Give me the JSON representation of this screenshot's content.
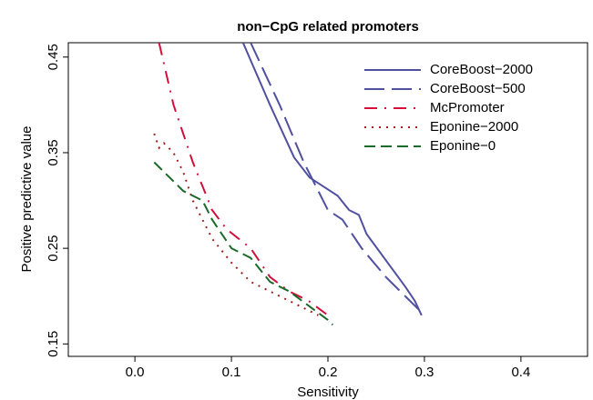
{
  "chart_data": {
    "type": "line",
    "title": "non−CpG related promoters",
    "xlabel": "Sensitivity",
    "ylabel": "Positive predictive value",
    "xlim": [
      -0.069,
      0.469
    ],
    "ylim": [
      0.137,
      0.465
    ],
    "xticks": [
      {
        "value": 0,
        "label": "0.0"
      },
      0.1,
      0.2,
      0.3,
      0.4
    ],
    "yticks": [
      0.15,
      0.25,
      0.35,
      0.45
    ],
    "legend": "top-right",
    "series": [
      {
        "name": "CoreBoost−2000",
        "color": "#5050a0",
        "style": "solid",
        "x": [
          0.112,
          0.14,
          0.165,
          0.181,
          0.21,
          0.222,
          0.232,
          0.24,
          0.28,
          0.29,
          0.297
        ],
        "values": [
          0.465,
          0.4,
          0.345,
          0.324,
          0.305,
          0.29,
          0.285,
          0.265,
          0.21,
          0.195,
          0.18
        ]
      },
      {
        "name": "CoreBoost−500",
        "color": "#5050a0",
        "style": "longdash",
        "x": [
          0.12,
          0.15,
          0.175,
          0.19,
          0.2,
          0.215,
          0.235,
          0.26,
          0.275,
          0.285,
          0.295
        ],
        "values": [
          0.465,
          0.4,
          0.34,
          0.31,
          0.29,
          0.28,
          0.25,
          0.22,
          0.205,
          0.195,
          0.185
        ]
      },
      {
        "name": "McPromoter",
        "color": "#d0103a",
        "style": "dashdot",
        "x": [
          0.025,
          0.04,
          0.06,
          0.08,
          0.095,
          0.12,
          0.14,
          0.16,
          0.18,
          0.2
        ],
        "values": [
          0.465,
          0.4,
          0.34,
          0.29,
          0.27,
          0.25,
          0.22,
          0.205,
          0.195,
          0.18
        ]
      },
      {
        "name": "Eponine−2000",
        "color": "#a02020",
        "style": "dotted",
        "x": [
          0.02,
          0.025,
          0.03,
          0.04,
          0.05,
          0.06,
          0.07,
          0.08,
          0.1,
          0.12,
          0.14,
          0.16,
          0.19
        ],
        "values": [
          0.37,
          0.355,
          0.36,
          0.35,
          0.33,
          0.3,
          0.28,
          0.26,
          0.235,
          0.215,
          0.205,
          0.195,
          0.18
        ]
      },
      {
        "name": "Eponine−0",
        "color": "#1a6a2a",
        "style": "dashed",
        "x": [
          0.02,
          0.03,
          0.05,
          0.07,
          0.08,
          0.1,
          0.12,
          0.14,
          0.16,
          0.18,
          0.2,
          0.205
        ],
        "values": [
          0.34,
          0.33,
          0.31,
          0.3,
          0.28,
          0.25,
          0.24,
          0.215,
          0.205,
          0.19,
          0.175,
          0.17
        ]
      }
    ]
  }
}
